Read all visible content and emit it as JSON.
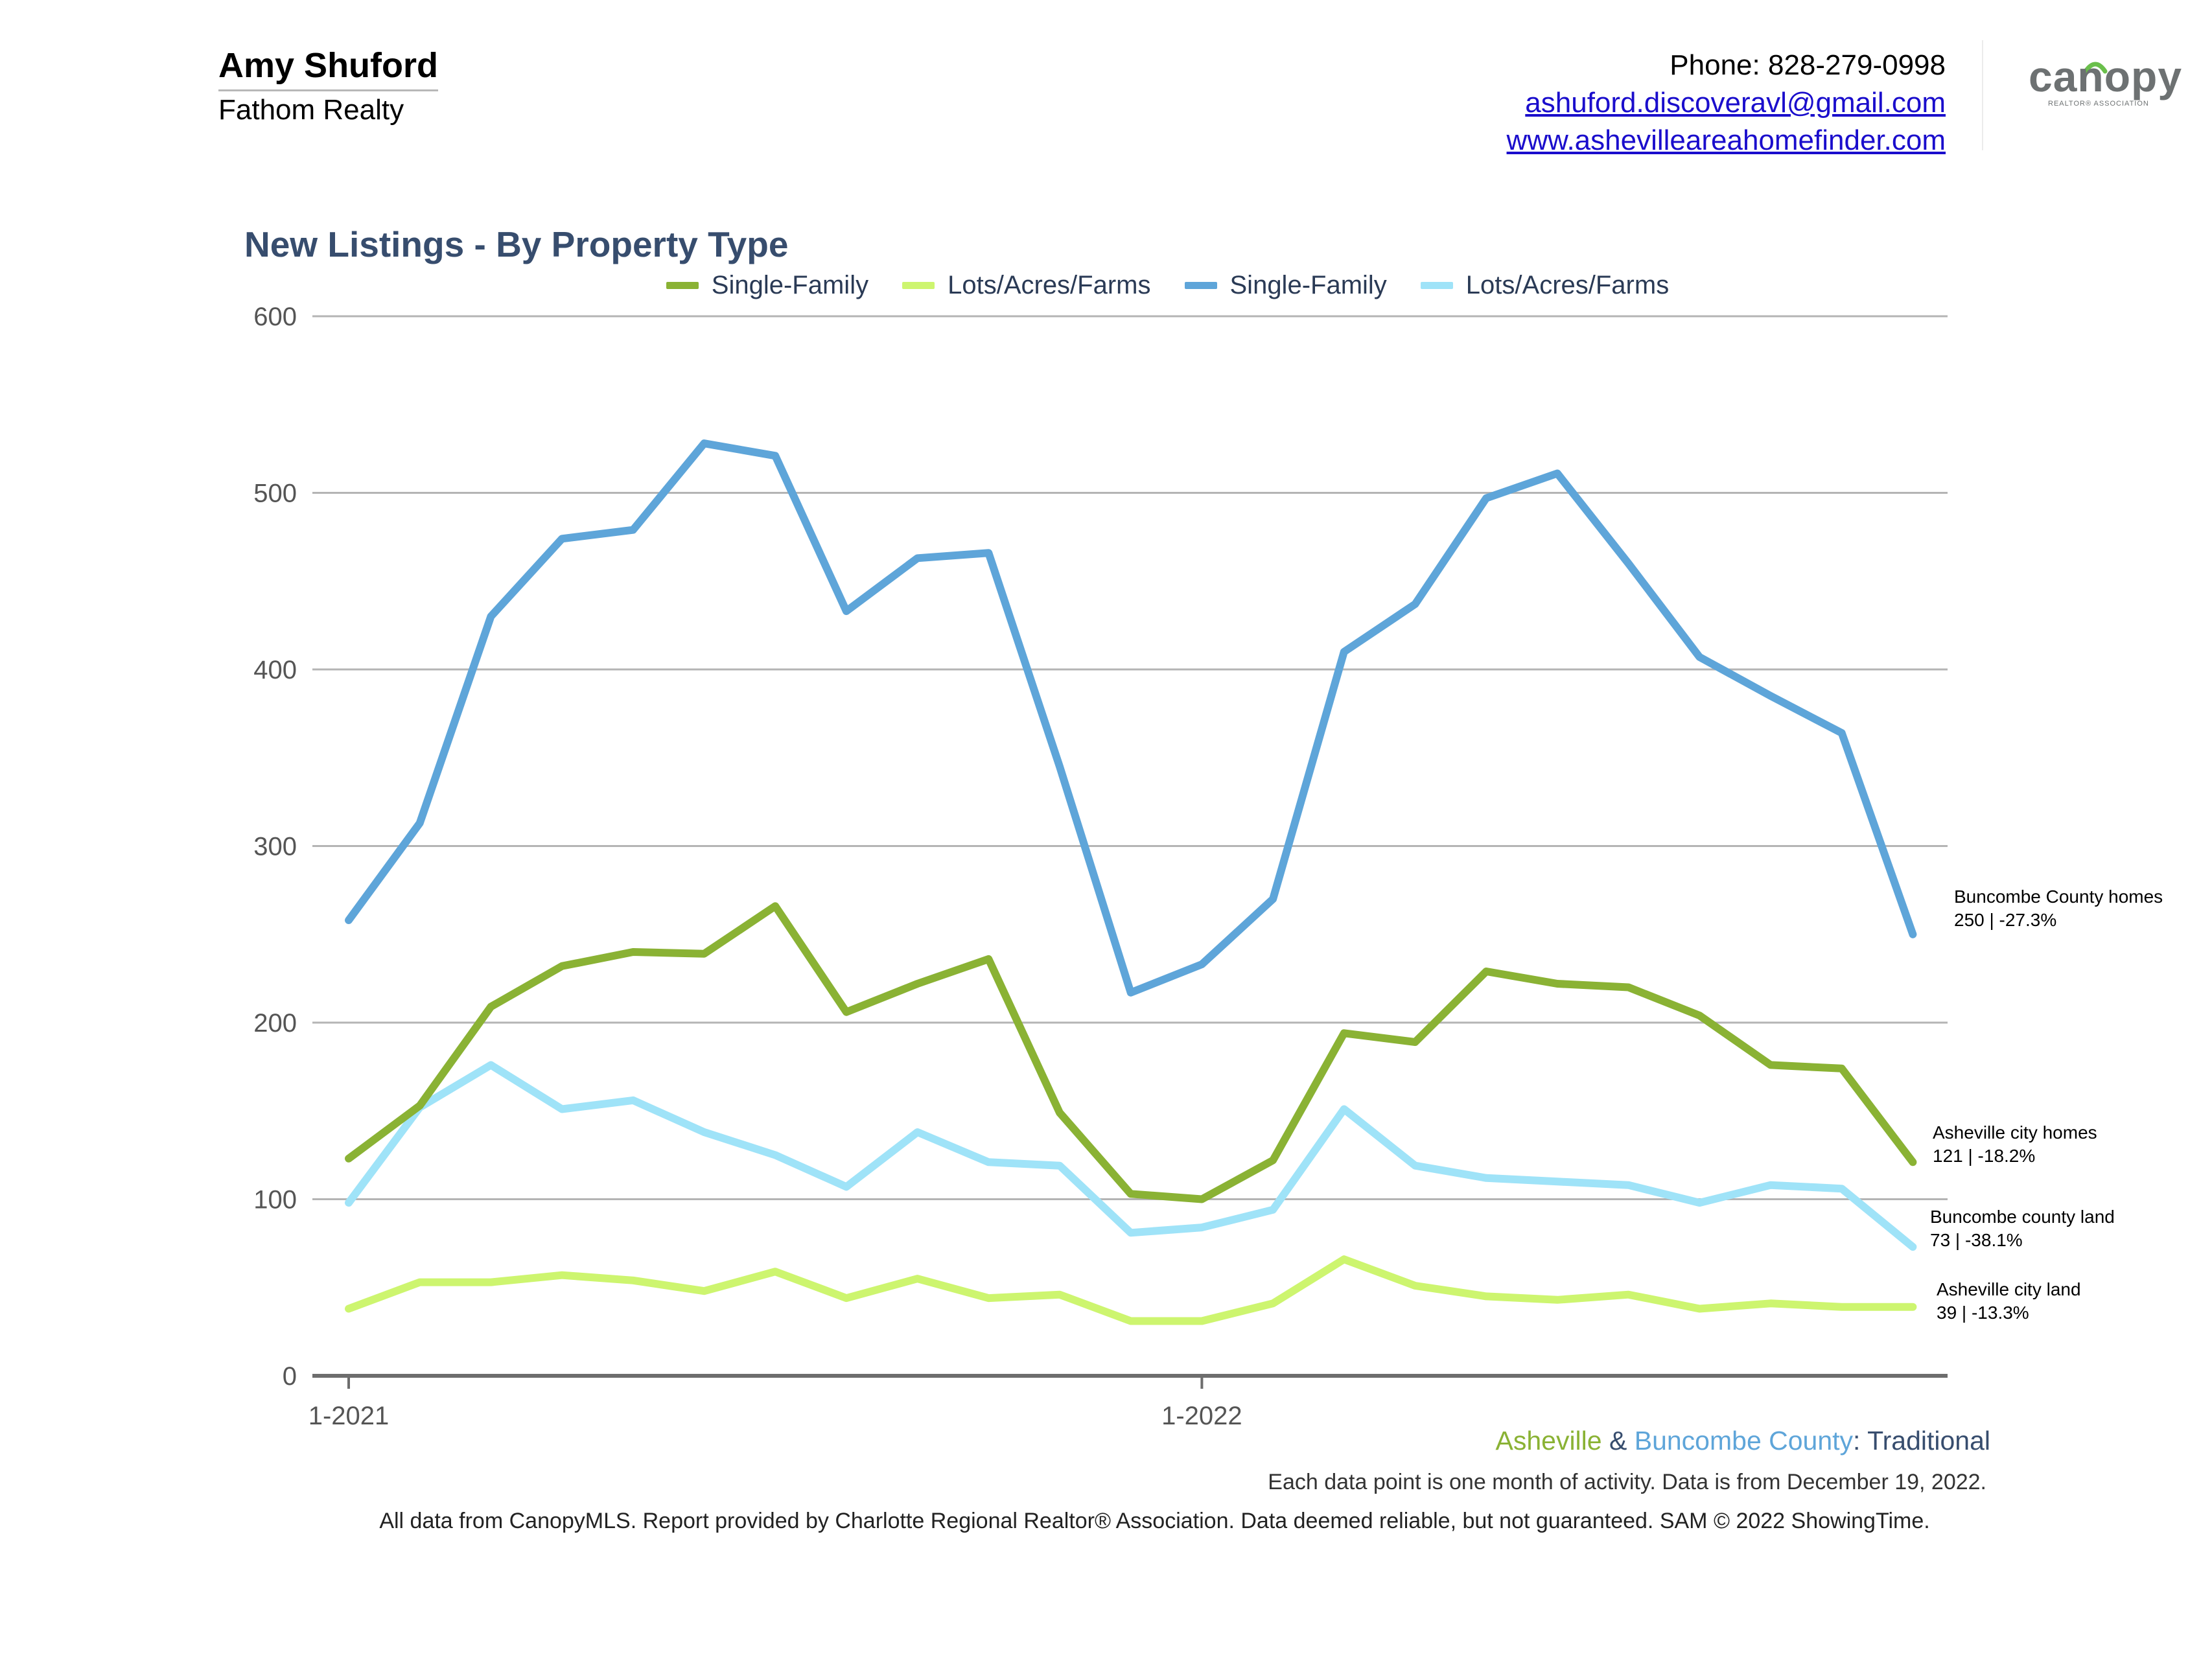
{
  "header": {
    "agent_name": "Amy Shuford",
    "company": "Fathom Realty",
    "phone": "Phone: 828-279-0998",
    "email": "ashuford.discoveravl@gmail.com",
    "website": "www.ashevilleareahomefinder.com",
    "logo_text": "canopy",
    "logo_subtext": "REALTOR® ASSOCIATION"
  },
  "chart_data": {
    "type": "line",
    "title": "New Listings - By Property Type",
    "x": [
      "1-2021",
      "2-2021",
      "3-2021",
      "4-2021",
      "5-2021",
      "6-2021",
      "7-2021",
      "8-2021",
      "9-2021",
      "10-2021",
      "11-2021",
      "12-2021",
      "1-2022",
      "2-2022",
      "3-2022",
      "4-2022",
      "5-2022",
      "6-2022",
      "7-2022",
      "8-2022",
      "9-2022",
      "10-2022",
      "11-2022"
    ],
    "x_tick_labels": [
      "1-2021",
      "1-2022"
    ],
    "y_ticks": [
      0,
      100,
      200,
      300,
      400,
      500,
      600
    ],
    "ylim": [
      0,
      600
    ],
    "grid": true,
    "legend_position": "top",
    "series": [
      {
        "name": "Single-Family",
        "color": "#8ab234",
        "values": [
          123,
          153,
          209,
          232,
          240,
          239,
          266,
          206,
          222,
          236,
          149,
          103,
          100,
          122,
          194,
          189,
          229,
          222,
          220,
          204,
          176,
          174,
          121
        ]
      },
      {
        "name": "Lots/Acres/Farms",
        "color": "#cdf56f",
        "values": [
          38,
          53,
          53,
          57,
          54,
          48,
          59,
          44,
          55,
          44,
          46,
          31,
          31,
          41,
          66,
          51,
          45,
          43,
          46,
          38,
          41,
          39,
          39
        ]
      },
      {
        "name": "Single-Family",
        "color": "#5ea5d9",
        "values": [
          258,
          313,
          430,
          474,
          479,
          528,
          521,
          433,
          463,
          466,
          345,
          217,
          233,
          270,
          410,
          437,
          497,
          511,
          460,
          407,
          385,
          364,
          250
        ]
      },
      {
        "name": "Lots/Acres/Farms",
        "color": "#9fe3f8",
        "values": [
          98,
          152,
          176,
          151,
          156,
          138,
          125,
          107,
          138,
          121,
          119,
          81,
          84,
          94,
          151,
          119,
          112,
          110,
          108,
          98,
          108,
          106,
          73
        ]
      }
    ],
    "end_labels": [
      {
        "line1": "Buncombe County homes",
        "line2": "250 | -27.3%"
      },
      {
        "line1": "Asheville city homes",
        "line2": "121 | -18.2%"
      },
      {
        "line1": "Buncombe county land",
        "line2": "73 | -38.1%"
      },
      {
        "line1": "Asheville city land",
        "line2": "39 | -13.3%"
      }
    ],
    "subtitle": {
      "part1": "Asheville",
      "part2": " & ",
      "part3": "Buncombe County",
      "part4": ": Traditional"
    },
    "note": "Each data point is one month of activity. Data is from December 19, 2022."
  },
  "footer": "All data from CanopyMLS. Report provided by Charlotte Regional Realtor® Association. Data deemed reliable, but not guaranteed. SAM © 2022 ShowingTime."
}
